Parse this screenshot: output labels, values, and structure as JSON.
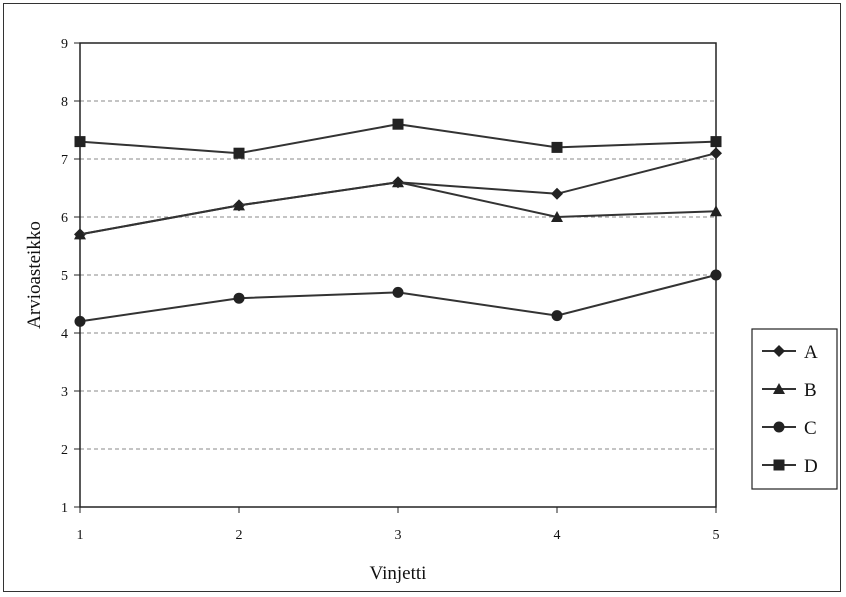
{
  "chart_data": {
    "type": "line",
    "title": "",
    "xlabel": "Vinjetti",
    "ylabel": "Arvioasteikko",
    "x": [
      1,
      2,
      3,
      4,
      5
    ],
    "ylim": [
      1,
      9
    ],
    "yticks": [
      1,
      2,
      3,
      4,
      5,
      6,
      7,
      8,
      9
    ],
    "grid": true,
    "legend_position": "right",
    "series": [
      {
        "name": "A",
        "marker": "diamond",
        "values": [
          5.7,
          6.2,
          6.6,
          6.4,
          7.1
        ]
      },
      {
        "name": "B",
        "marker": "triangle",
        "values": [
          5.7,
          6.2,
          6.6,
          6.0,
          6.1
        ]
      },
      {
        "name": "C",
        "marker": "circle",
        "values": [
          4.2,
          4.6,
          4.7,
          4.3,
          5.0
        ]
      },
      {
        "name": "D",
        "marker": "square",
        "values": [
          7.3,
          7.1,
          7.6,
          7.2,
          7.3
        ]
      }
    ],
    "colors": {
      "line": "#333333",
      "marker": "#222222",
      "grid": "#888888"
    }
  }
}
